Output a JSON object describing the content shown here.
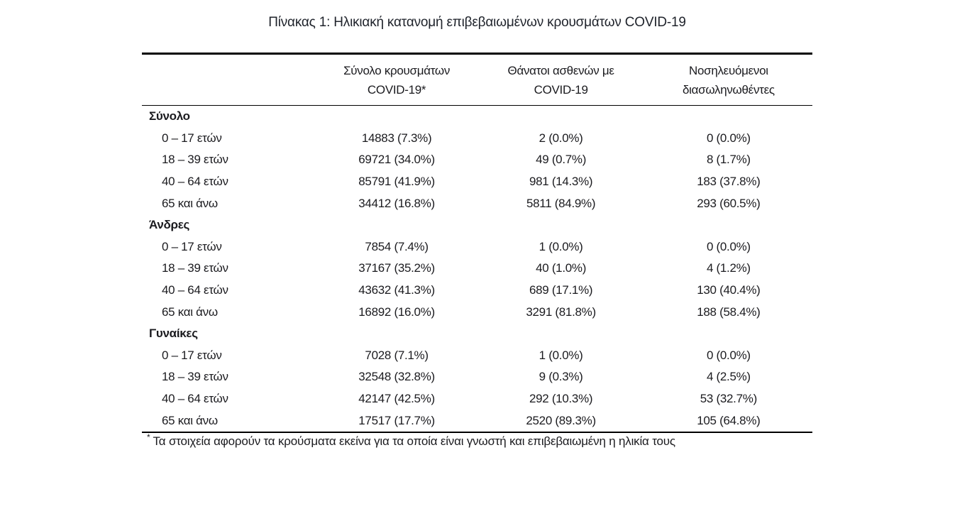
{
  "title": "Πίνακας 1: Ηλικιακή κατανομή επιβεβαιωμένων κρουσμάτων COVID-19",
  "table": {
    "columns": [
      {
        "line1": "Σύνολο κρουσμάτων",
        "line2": "COVID-19*"
      },
      {
        "line1": "Θάνατοι ασθενών με",
        "line2": "COVID-19"
      },
      {
        "line1": "Νοσηλευόμενοι",
        "line2": "διασωληνωθέντες"
      }
    ],
    "sections": [
      {
        "label": "Σύνολο",
        "rows": [
          {
            "label": "0 – 17 ετών",
            "cases": "14883 (7.3%)",
            "deaths": "2 (0.0%)",
            "intubated": "0 (0.0%)"
          },
          {
            "label": "18 – 39 ετών",
            "cases": "69721 (34.0%)",
            "deaths": "49 (0.7%)",
            "intubated": "8 (1.7%)"
          },
          {
            "label": "40 – 64 ετών",
            "cases": "85791 (41.9%)",
            "deaths": "981 (14.3%)",
            "intubated": "183 (37.8%)"
          },
          {
            "label": "65 και άνω",
            "cases": "34412 (16.8%)",
            "deaths": "5811 (84.9%)",
            "intubated": "293 (60.5%)"
          }
        ]
      },
      {
        "label": "Άνδρες",
        "rows": [
          {
            "label": "0 – 17 ετών",
            "cases": "7854 (7.4%)",
            "deaths": "1 (0.0%)",
            "intubated": "0 (0.0%)"
          },
          {
            "label": "18 – 39 ετών",
            "cases": "37167 (35.2%)",
            "deaths": "40 (1.0%)",
            "intubated": "4 (1.2%)"
          },
          {
            "label": "40 – 64 ετών",
            "cases": "43632 (41.3%)",
            "deaths": "689 (17.1%)",
            "intubated": "130 (40.4%)"
          },
          {
            "label": "65 και άνω",
            "cases": "16892 (16.0%)",
            "deaths": "3291 (81.8%)",
            "intubated": "188 (58.4%)"
          }
        ]
      },
      {
        "label": "Γυναίκες",
        "rows": [
          {
            "label": "0 – 17 ετών",
            "cases": "7028 (7.1%)",
            "deaths": "1 (0.0%)",
            "intubated": "0 (0.0%)"
          },
          {
            "label": "18 – 39 ετών",
            "cases": "32548 (32.8%)",
            "deaths": "9 (0.3%)",
            "intubated": "4 (2.5%)"
          },
          {
            "label": "40 – 64 ετών",
            "cases": "42147 (42.5%)",
            "deaths": "292 (10.3%)",
            "intubated": "53 (32.7%)"
          },
          {
            "label": "65 και άνω",
            "cases": "17517 (17.7%)",
            "deaths": "2520 (89.3%)",
            "intubated": "105 (64.8%)"
          }
        ]
      }
    ]
  },
  "footnote": {
    "marker": "*",
    "text": "Τα στοιχεία αφορούν τα κρούσματα εκείνα για τα οποία είναι γνωστή και επιβεβαιωμένη η ηλικία τους"
  }
}
